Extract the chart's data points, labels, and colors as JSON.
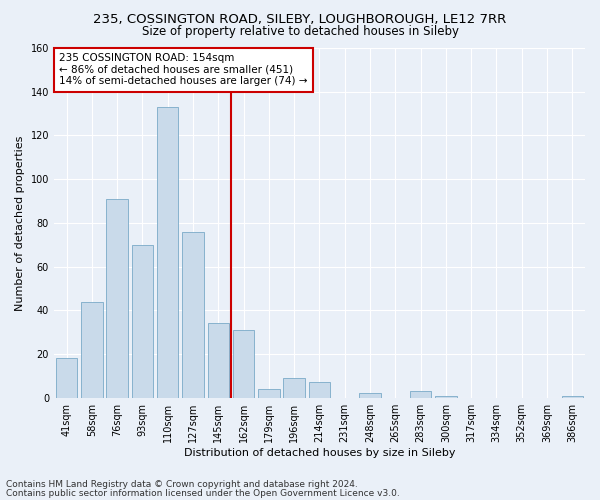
{
  "title1": "235, COSSINGTON ROAD, SILEBY, LOUGHBOROUGH, LE12 7RR",
  "title2": "Size of property relative to detached houses in Sileby",
  "xlabel": "Distribution of detached houses by size in Sileby",
  "ylabel": "Number of detached properties",
  "footer1": "Contains HM Land Registry data © Crown copyright and database right 2024.",
  "footer2": "Contains public sector information licensed under the Open Government Licence v3.0.",
  "annotation_line1": "235 COSSINGTON ROAD: 154sqm",
  "annotation_line2": "← 86% of detached houses are smaller (451)",
  "annotation_line3": "14% of semi-detached houses are larger (74) →",
  "bar_categories": [
    "41sqm",
    "58sqm",
    "76sqm",
    "93sqm",
    "110sqm",
    "127sqm",
    "145sqm",
    "162sqm",
    "179sqm",
    "196sqm",
    "214sqm",
    "231sqm",
    "248sqm",
    "265sqm",
    "283sqm",
    "300sqm",
    "317sqm",
    "334sqm",
    "352sqm",
    "369sqm",
    "386sqm"
  ],
  "bar_values": [
    18,
    44,
    91,
    70,
    133,
    76,
    34,
    31,
    4,
    9,
    7,
    0,
    2,
    0,
    3,
    1,
    0,
    0,
    0,
    0,
    1
  ],
  "bar_color": "#c9daea",
  "bar_edge_color": "#7aaac8",
  "vline_color": "#cc0000",
  "ylim": [
    0,
    160
  ],
  "yticks": [
    0,
    20,
    40,
    60,
    80,
    100,
    120,
    140,
    160
  ],
  "background_color": "#eaf0f8",
  "plot_bg_color": "#eaf0f8",
  "grid_color": "#ffffff",
  "annotation_box_facecolor": "#ffffff",
  "annotation_box_edgecolor": "#cc0000",
  "title1_fontsize": 9.5,
  "title2_fontsize": 8.5,
  "xlabel_fontsize": 8,
  "ylabel_fontsize": 8,
  "annotation_fontsize": 7.5,
  "tick_fontsize": 7,
  "footer_fontsize": 6.5
}
